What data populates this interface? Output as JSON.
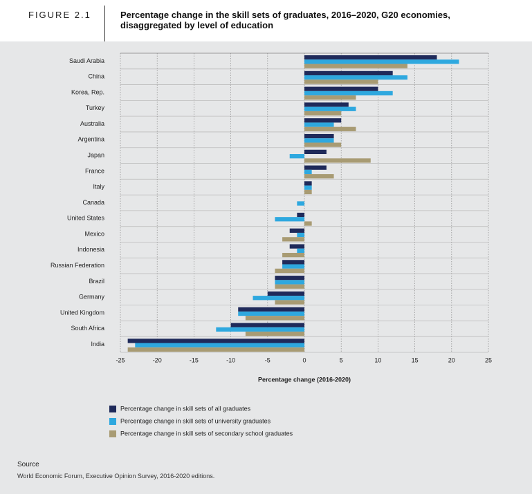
{
  "header": {
    "figure_label": "FIGURE 2.1",
    "title": "Percentage change in the skill sets of graduates, 2016–2020, G20 economies, disaggregated by level of education"
  },
  "chart_data": {
    "type": "hbar",
    "x_label": "Percentage change (2016-2020)",
    "categories": [
      "Saudi Arabia",
      "China",
      "Korea, Rep.",
      "Turkey",
      "Australia",
      "Argentina",
      "Japan",
      "France",
      "Italy",
      "Canada",
      "United States",
      "Mexico",
      "Indonesia",
      "Russian Federation",
      "Brazil",
      "Germany",
      "United Kingdom",
      "South Africa",
      "India"
    ],
    "series": [
      {
        "name": "Percentage change in skill sets of all graduates",
        "color": "#1f2a5a",
        "values": [
          18,
          12,
          10,
          6,
          5,
          4,
          3,
          3,
          1,
          0,
          -1,
          -2,
          -2,
          -3,
          -4,
          -5,
          -9,
          -10,
          -24
        ]
      },
      {
        "name": "Percentage change in skill sets of university graduates",
        "color": "#2ea8df",
        "values": [
          21,
          14,
          12,
          7,
          4,
          4,
          -2,
          1,
          1,
          -1,
          -4,
          -1,
          -1,
          -3,
          -4,
          -7,
          -9,
          -12,
          -23
        ]
      },
      {
        "name": "Percentage change in skill sets of secondary school graduates",
        "color": "#a89b73",
        "values": [
          14,
          10,
          7,
          5,
          7,
          5,
          9,
          4,
          1,
          0,
          1,
          -3,
          -3,
          -4,
          -4,
          -4,
          -8,
          -8,
          -24
        ]
      }
    ],
    "xlim": [
      -25,
      25
    ],
    "xticks": [
      -25,
      -20,
      -15,
      -10,
      -5,
      0,
      5,
      10,
      15,
      20,
      25
    ],
    "grid": true
  },
  "source": {
    "heading": "Source",
    "text": "World Economic Forum, Executive Opinion Survey, 2016-2020 editions."
  }
}
